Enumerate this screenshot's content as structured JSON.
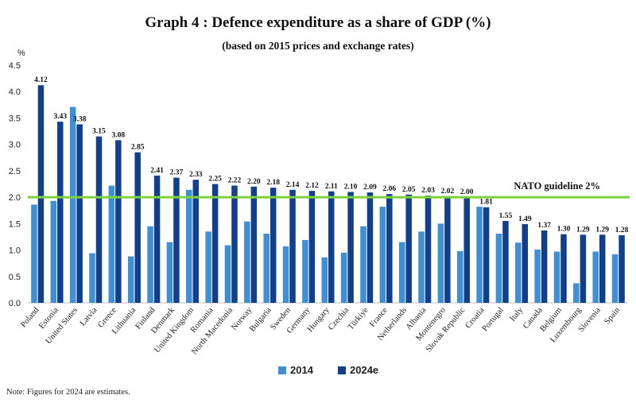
{
  "chart_data": {
    "type": "bar",
    "title": "Graph 4 : Defence expenditure as a share of GDP (%)",
    "subtitle": "(based on 2015 prices and exchange rates)",
    "yunit": "%",
    "ylim": [
      0,
      4.5
    ],
    "yticks": [
      "0.0",
      "0.5",
      "1.0",
      "1.5",
      "2.0",
      "2.5",
      "3.0",
      "3.5",
      "4.0",
      "4.5"
    ],
    "grid": false,
    "legend_position": "bottom-center",
    "categories": [
      "Poland",
      "Estonia",
      "United States",
      "Latvia",
      "Greece",
      "Lithuania",
      "Finland",
      "Denmark",
      "United Kingdom",
      "Romania",
      "North Macedonia",
      "Norway",
      "Bulgaria",
      "Sweden",
      "Germany",
      "Hungary",
      "Czechia",
      "Türkiye",
      "France",
      "Netherlands",
      "Albania",
      "Montenegro",
      "Slovak Republic",
      "Croatia",
      "Portugal",
      "Italy",
      "Canada",
      "Belgium",
      "Luxembourg",
      "Slovenia",
      "Spain"
    ],
    "series": [
      {
        "name": "2014",
        "color": "#3f8fd4",
        "values": [
          1.86,
          1.93,
          3.71,
          0.94,
          2.22,
          0.88,
          1.45,
          1.15,
          2.14,
          1.35,
          1.09,
          1.54,
          1.31,
          1.07,
          1.19,
          0.86,
          0.95,
          1.45,
          1.82,
          1.15,
          1.35,
          1.5,
          0.98,
          1.82,
          1.31,
          1.14,
          1.01,
          0.97,
          0.37,
          0.97,
          0.92
        ]
      },
      {
        "name": "2024e",
        "color": "#123f8c",
        "values": [
          4.12,
          3.43,
          3.38,
          3.15,
          3.08,
          2.85,
          2.41,
          2.37,
          2.33,
          2.25,
          2.22,
          2.2,
          2.18,
          2.14,
          2.12,
          2.11,
          2.1,
          2.09,
          2.06,
          2.05,
          2.03,
          2.02,
          2.0,
          1.81,
          1.55,
          1.49,
          1.37,
          1.3,
          1.29,
          1.29,
          1.28
        ],
        "labels": [
          "4.12",
          "3.43",
          "3.38",
          "3.15",
          "3.08",
          "2.85",
          "2.41",
          "2.37",
          "2.33",
          "2.25",
          "2.22",
          "2.20",
          "2.18",
          "2.14",
          "2.12",
          "2.11",
          "2.10",
          "2.09",
          "2.06",
          "2.05",
          "2.03",
          "2.02",
          "2.00",
          "1.81",
          "1.55",
          "1.49",
          "1.37",
          "1.30",
          "1.29",
          "1.29",
          "1.28"
        ]
      }
    ],
    "reference_line": {
      "value": 2.0,
      "label": "NATO guideline 2%",
      "color": "#7ed13a"
    }
  },
  "note": "Note: Figures for 2024 are estimates."
}
